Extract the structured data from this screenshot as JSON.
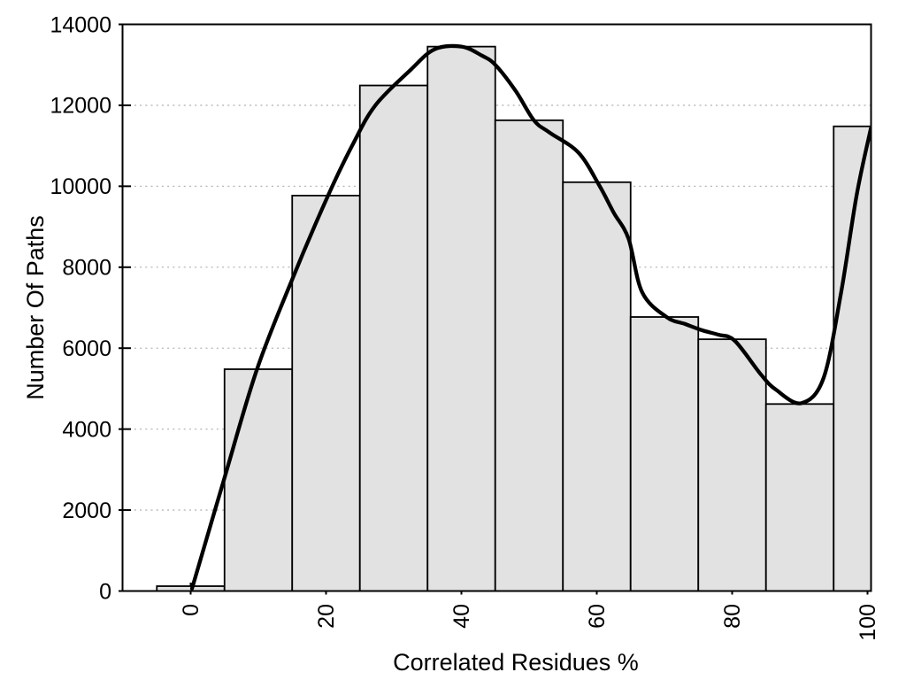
{
  "chart_data": {
    "type": "bar",
    "subtype": "histogram-with-smoothed-curve",
    "title": "",
    "xlabel": "Correlated Residues %",
    "ylabel": "Number Of Paths",
    "xlim": [
      -10.1,
      100.6
    ],
    "ylim": [
      0,
      14000
    ],
    "x_ticks": [
      0,
      20,
      40,
      60,
      80,
      100
    ],
    "y_ticks": [
      0,
      2000,
      4000,
      6000,
      8000,
      10000,
      12000,
      14000
    ],
    "x_tick_label_rotation": -90,
    "grid": "horizontal dotted lines at y ticks",
    "legend_position": "none",
    "bar_bin_width": 10,
    "categories": [
      0,
      10,
      20,
      30,
      40,
      50,
      60,
      70,
      80,
      90,
      100
    ],
    "series": [
      {
        "name": "path-count-histogram",
        "type": "bar",
        "values": [
          120,
          5480,
          9770,
          12490,
          13450,
          11630,
          10100,
          6770,
          6220,
          4620,
          11480
        ]
      },
      {
        "name": "smoothed-trend-curve",
        "type": "line",
        "points": [
          [
            0.2,
            60
          ],
          [
            5,
            2800
          ],
          [
            9.8,
            5480
          ],
          [
            15,
            7700
          ],
          [
            20.3,
            9770
          ],
          [
            24,
            11050
          ],
          [
            27.3,
            12000
          ],
          [
            32.4,
            12860
          ],
          [
            36,
            13380
          ],
          [
            40,
            13450
          ],
          [
            43,
            13230
          ],
          [
            45,
            13000
          ],
          [
            48,
            12360
          ],
          [
            50.7,
            11630
          ],
          [
            53,
            11330
          ],
          [
            57.3,
            10830
          ],
          [
            60.4,
            10010
          ],
          [
            62.5,
            9350
          ],
          [
            64.7,
            8700
          ],
          [
            66.7,
            7380
          ],
          [
            70.3,
            6770
          ],
          [
            73,
            6600
          ],
          [
            75.6,
            6440
          ],
          [
            78,
            6330
          ],
          [
            80.4,
            6180
          ],
          [
            84.3,
            5340
          ],
          [
            86.5,
            4970
          ],
          [
            90.2,
            4640
          ],
          [
            93.5,
            5260
          ],
          [
            96.1,
            7380
          ],
          [
            98.4,
            9790
          ],
          [
            100.5,
            11430
          ]
        ]
      }
    ],
    "colors": {
      "bar_fill": "#e2e2e2",
      "bar_stroke": "#000000",
      "curve": "#000000",
      "grid": "#b5b5b5",
      "frame": "#000000",
      "text": "#000000",
      "background": "#ffffff"
    }
  }
}
